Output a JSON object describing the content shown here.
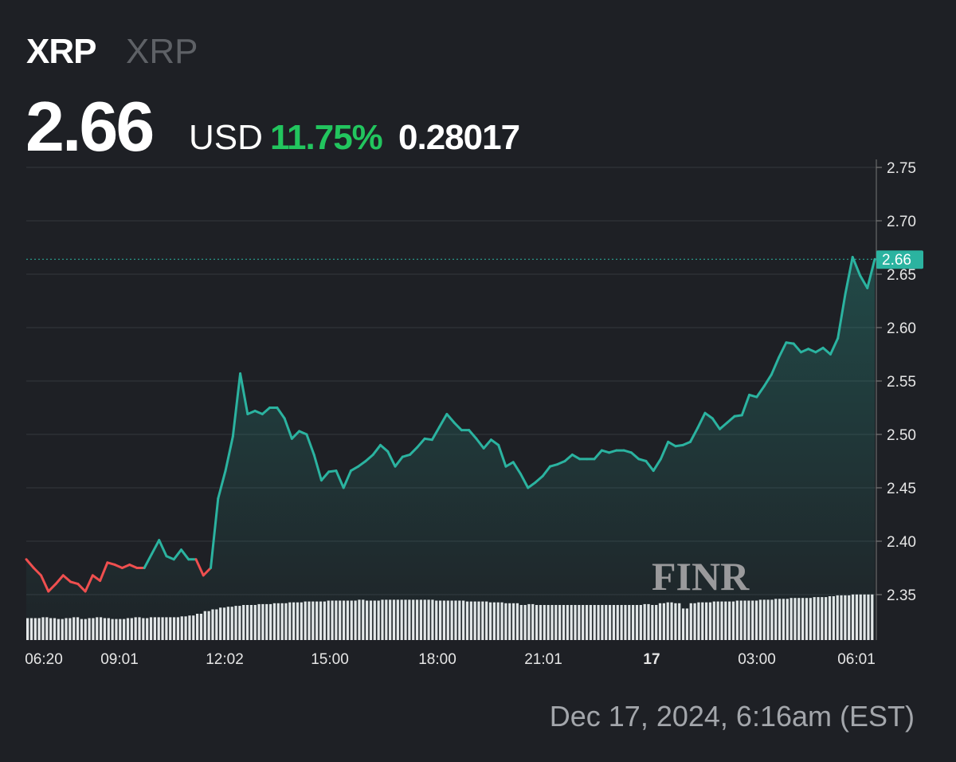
{
  "header": {
    "symbol": "XRP",
    "name": "XRP",
    "price": "2.66",
    "currency": "USD",
    "change_pct": "11.75%",
    "change_abs": "0.28017"
  },
  "timestamp": "Dec 17, 2024, 6:16am (EST)",
  "watermark": "FINR",
  "colors": {
    "up": "#2bb3a0",
    "down": "#ef4f4f",
    "pct": "#22c55e"
  },
  "chart_data": {
    "type": "line",
    "ylim": [
      2.31,
      2.75
    ],
    "y_ticks": [
      "2.75",
      "2.70",
      "2.65",
      "2.60",
      "2.55",
      "2.50",
      "2.45",
      "2.40",
      "2.35"
    ],
    "x_ticks": [
      "06:20",
      "09:01",
      "12:02",
      "15:00",
      "18:00",
      "21:01",
      "17",
      "03:00",
      "06:01"
    ],
    "last_price_label": "2.66",
    "last_price": 2.664,
    "open_price": 2.383,
    "grid": true,
    "values": [
      2.383,
      2.375,
      2.368,
      2.353,
      2.36,
      2.368,
      2.362,
      2.36,
      2.353,
      2.368,
      2.363,
      2.38,
      2.378,
      2.375,
      2.378,
      2.375,
      2.375,
      2.388,
      2.401,
      2.386,
      2.383,
      2.392,
      2.383,
      2.383,
      2.368,
      2.375,
      2.44,
      2.466,
      2.498,
      2.557,
      2.519,
      2.522,
      2.519,
      2.525,
      2.525,
      2.515,
      2.496,
      2.503,
      2.5,
      2.481,
      2.457,
      2.465,
      2.466,
      2.45,
      2.466,
      2.47,
      2.475,
      2.481,
      2.49,
      2.484,
      2.47,
      2.479,
      2.481,
      2.488,
      2.496,
      2.495,
      2.507,
      2.519,
      2.511,
      2.504,
      2.504,
      2.496,
      2.487,
      2.495,
      2.49,
      2.47,
      2.474,
      2.463,
      2.45,
      2.455,
      2.461,
      2.47,
      2.472,
      2.475,
      2.481,
      2.477,
      2.477,
      2.477,
      2.485,
      2.483,
      2.485,
      2.485,
      2.483,
      2.477,
      2.475,
      2.466,
      2.477,
      2.493,
      2.489,
      2.49,
      2.493,
      2.506,
      2.52,
      2.515,
      2.505,
      2.511,
      2.517,
      2.518,
      2.537,
      2.535,
      2.545,
      2.556,
      2.572,
      2.586,
      2.585,
      2.577,
      2.58,
      2.577,
      2.581,
      2.575,
      2.59,
      2.631,
      2.666,
      2.649,
      2.637,
      2.664
    ],
    "volume_relative": [
      25,
      25,
      26,
      25,
      24,
      25,
      26,
      24,
      25,
      26,
      25,
      24,
      24,
      25,
      26,
      25,
      26,
      26,
      26,
      26,
      27,
      28,
      30,
      33,
      35,
      37,
      38,
      39,
      40,
      40,
      41,
      41,
      42,
      42,
      43,
      43,
      44,
      44,
      44,
      45,
      45,
      45,
      45,
      46,
      45,
      45,
      46,
      46,
      46,
      46,
      46,
      46,
      46,
      45,
      45,
      45,
      45,
      44,
      44,
      44,
      43,
      43,
      42,
      42,
      40,
      41,
      40,
      40,
      40,
      40,
      40,
      40,
      40,
      40,
      40,
      40,
      40,
      40,
      40,
      40,
      41,
      40,
      42,
      43,
      42,
      36,
      42,
      43,
      43,
      44,
      44,
      44,
      45,
      45,
      45,
      46,
      46,
      47,
      47,
      48,
      48,
      48,
      49,
      49,
      50,
      51,
      51,
      52,
      52,
      52
    ]
  }
}
